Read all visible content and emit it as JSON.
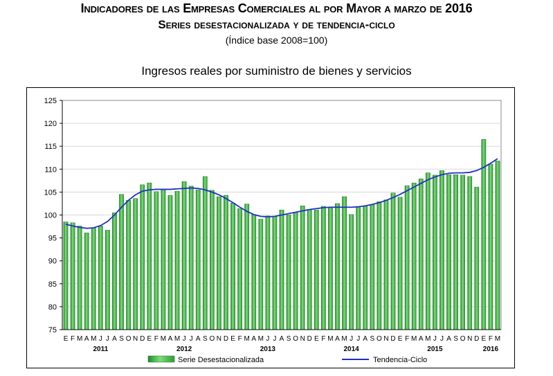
{
  "titles": {
    "main": "Indicadores de las Empresas Comerciales al por Mayor a marzo de 2016",
    "sub": "Series desestacionalizada y de tendencia-ciclo",
    "base": "(Índice base 2008=100)",
    "chart": "Ingresos reales por suministro de bienes y servicios"
  },
  "chart_data": {
    "type": "bar",
    "title": "Ingresos reales por suministro de bienes y servicios",
    "ylim": [
      75,
      125
    ],
    "yticks": [
      75,
      80,
      85,
      90,
      95,
      100,
      105,
      110,
      115,
      120,
      125
    ],
    "grid": true,
    "legend_position": "bottom",
    "month_labels": [
      "E",
      "F",
      "M",
      "A",
      "M",
      "J",
      "J",
      "A",
      "S",
      "O",
      "N",
      "D",
      "E",
      "F",
      "M",
      "A",
      "M",
      "J",
      "J",
      "A",
      "S",
      "O",
      "N",
      "D",
      "E",
      "F",
      "M",
      "A",
      "M",
      "J",
      "J",
      "A",
      "S",
      "O",
      "N",
      "D",
      "E",
      "F",
      "M",
      "A",
      "M",
      "J",
      "J",
      "A",
      "S",
      "O",
      "N",
      "D",
      "E",
      "F",
      "M",
      "A",
      "M",
      "J",
      "J",
      "A",
      "S",
      "O",
      "N",
      "D",
      "E",
      "F",
      "M"
    ],
    "year_labels": [
      {
        "label": "2011",
        "month_index": 5
      },
      {
        "label": "2012",
        "month_index": 17
      },
      {
        "label": "2013",
        "month_index": 29
      },
      {
        "label": "2014",
        "month_index": 41
      },
      {
        "label": "2015",
        "month_index": 53
      },
      {
        "label": "2016",
        "month_index": 61
      }
    ],
    "series": [
      {
        "name": "Serie Desestacionalizada",
        "kind": "bar",
        "color": "#3cb043",
        "values": [
          98.5,
          98.3,
          97.6,
          96.1,
          97.2,
          97.6,
          96.7,
          100.5,
          104.5,
          103.2,
          103.6,
          106.6,
          107.0,
          105.1,
          105.5,
          104.3,
          105.2,
          107.3,
          106.3,
          105.5,
          108.4,
          105.4,
          104.0,
          104.3,
          102.6,
          101.4,
          102.4,
          100.1,
          99.1,
          99.8,
          99.7,
          101.1,
          100.0,
          100.6,
          102.0,
          101.2,
          101.1,
          101.9,
          101.6,
          102.5,
          104.0,
          100.1,
          101.8,
          101.9,
          102.2,
          102.9,
          103.3,
          104.8,
          103.9,
          106.4,
          107.0,
          107.9,
          109.2,
          108.7,
          109.7,
          108.8,
          108.8,
          108.7,
          108.4,
          106.1,
          116.5,
          111.1,
          111.8
        ]
      },
      {
        "name": "Tendencia-Ciclo",
        "kind": "line",
        "color": "#1f2fc6",
        "values": [
          98.0,
          97.6,
          97.3,
          97.1,
          97.2,
          97.7,
          98.6,
          100.0,
          101.7,
          103.2,
          104.4,
          105.2,
          105.5,
          105.6,
          105.6,
          105.6,
          105.7,
          105.8,
          105.9,
          105.8,
          105.5,
          105.0,
          104.4,
          103.6,
          102.7,
          101.7,
          100.8,
          100.1,
          99.7,
          99.6,
          99.7,
          100.0,
          100.3,
          100.6,
          100.9,
          101.2,
          101.4,
          101.6,
          101.7,
          101.7,
          101.7,
          101.7,
          101.8,
          102.0,
          102.3,
          102.7,
          103.2,
          103.8,
          104.5,
          105.3,
          106.1,
          106.9,
          107.7,
          108.3,
          108.8,
          109.1,
          109.2,
          109.2,
          109.3,
          109.7,
          110.4,
          111.3,
          112.3
        ]
      }
    ]
  },
  "colors": {
    "bar": "#3cb043",
    "bar_edge": "#1e7a26",
    "line": "#1f2fc6",
    "plot_bg": "#ffffff",
    "grid": "#d8d8d8"
  }
}
